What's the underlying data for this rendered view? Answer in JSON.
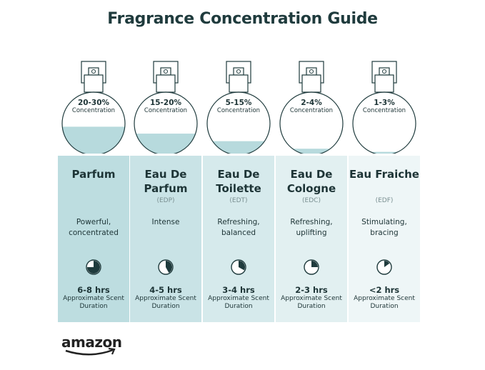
{
  "title": "Fragrance Concentration Guide",
  "colors": {
    "fill": "#b7dadd",
    "panel_left": "#bddde0",
    "panel_right": "#eef6f7",
    "text": "#1f3b3d"
  },
  "types": [
    {
      "concentration": "20-30%",
      "concentration_label": "Concentration",
      "name": "Parfum",
      "abbr": "",
      "description": "Powerful, concentrated",
      "duration": "6-8 hrs",
      "duration_label": "Approximate Scent Duration",
      "fill_level": 0.45,
      "pie_fraction": 0.75
    },
    {
      "concentration": "15-20%",
      "concentration_label": "Concentration",
      "name": "Eau De Parfum",
      "abbr": "(EDP)",
      "description": "Intense",
      "duration": "4-5 hrs",
      "duration_label": "Approximate Scent Duration",
      "fill_level": 0.34,
      "pie_fraction": 0.42
    },
    {
      "concentration": "5-15%",
      "concentration_label": "Concentration",
      "name": "Eau De Toilette",
      "abbr": "(EDT)",
      "description": "Refreshing, balanced",
      "duration": "3-4 hrs",
      "duration_label": "Approximate Scent Duration",
      "fill_level": 0.22,
      "pie_fraction": 0.33
    },
    {
      "concentration": "2-4%",
      "concentration_label": "Concentration",
      "name": "Eau De Cologne",
      "abbr": "(EDC)",
      "description": "Refreshing, uplifting",
      "duration": "2-3 hrs",
      "duration_label": "Approximate Scent Duration",
      "fill_level": 0.1,
      "pie_fraction": 0.25
    },
    {
      "concentration": "1-3%",
      "concentration_label": "Concentration",
      "name": "Eau Fraiche",
      "abbr": "(EDF)",
      "description": "Stimulating, bracing",
      "duration": "<2 hrs",
      "duration_label": "Approximate Scent Duration",
      "fill_level": 0.05,
      "pie_fraction": 0.15
    }
  ],
  "logo": "amazon"
}
